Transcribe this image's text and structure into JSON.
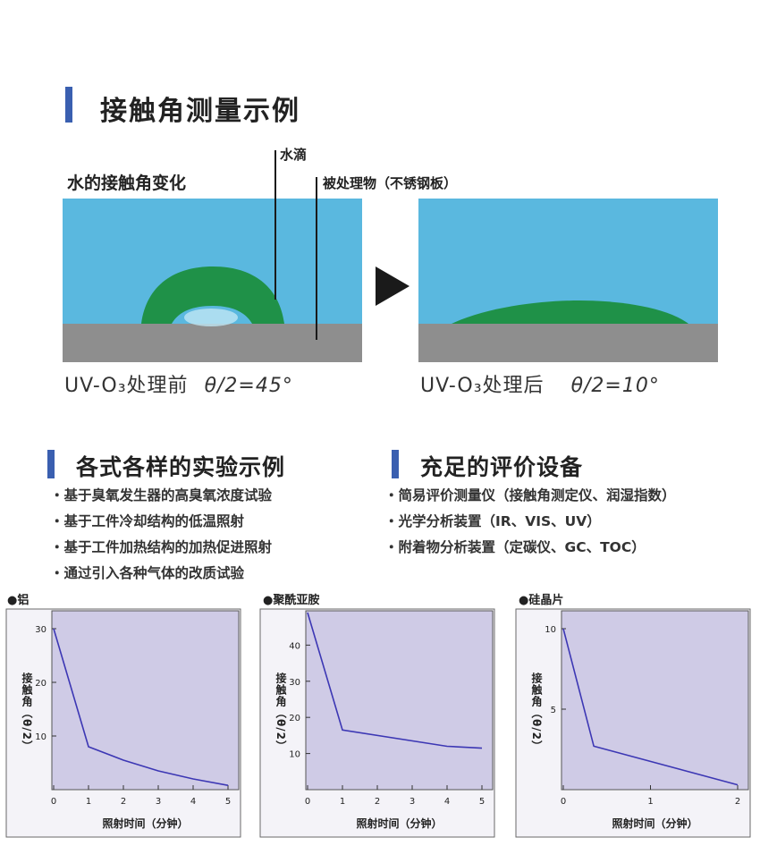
{
  "heading": "接触角测量示例",
  "diagram": {
    "subtitle": "水的接触角变化",
    "label_droplet": "水滴",
    "label_substrate": "被处理物（不锈钢板）",
    "before_caption_prefix": "UV-O₃处理前",
    "before_caption_angle": "θ/2=45°",
    "after_caption_prefix": "UV-O₃处理后",
    "after_caption_angle": "θ/2=10°",
    "colors": {
      "water": "#5ab8df",
      "droplet": "#1f9148",
      "substrate": "#8e8e8e",
      "arrow": "#1a1a1a"
    }
  },
  "section_examples": {
    "title": "各式各样的实验示例",
    "items": [
      "・基于臭氧发生器的高臭氧浓度试验",
      "・基于工件冷却结构的低温照射",
      "・基于工件加热结构的加热促进照射",
      "・通过引入各种气体的改质试验"
    ]
  },
  "section_equipment": {
    "title": "充足的评价设备",
    "items": [
      "・简易评价测量仪（接触角测定仪、润湿指数）",
      "・光学分析装置（IR、VIS、UV）",
      "・附着物分析装置（定碳仪、GC、TOC）"
    ]
  },
  "chart_data": [
    {
      "type": "line",
      "title": "●铝",
      "xlabel": "照射时间（分钟）",
      "ylabel": "接触角（θ/2）",
      "x": [
        0,
        1,
        2,
        3,
        4,
        5
      ],
      "y": [
        30,
        8,
        5.5,
        3.5,
        2,
        0.8
      ],
      "xlim": [
        0,
        5
      ],
      "ylim": [
        0,
        33
      ],
      "xticks": [
        0,
        1,
        2,
        3,
        4,
        5
      ],
      "yticks": [
        10,
        20,
        30
      ],
      "grid": false,
      "colors": {
        "plot_bg": "#cfcbe6",
        "line": "#3c37b4"
      }
    },
    {
      "type": "line",
      "title": "●聚酰亚胺",
      "xlabel": "照射时间（分钟）",
      "ylabel": "接触角（θ/2）",
      "x": [
        0,
        1,
        4,
        5
      ],
      "y": [
        49,
        16.5,
        12,
        11.5
      ],
      "xlim": [
        0,
        5
      ],
      "ylim": [
        0,
        49
      ],
      "xticks": [
        0,
        1,
        2,
        3,
        4,
        5
      ],
      "yticks": [
        10,
        20,
        30,
        40
      ],
      "grid": false,
      "colors": {
        "plot_bg": "#cfcbe6",
        "line": "#3c37b4"
      }
    },
    {
      "type": "line",
      "title": "●硅晶片",
      "xlabel": "照射时间（分钟）",
      "ylabel": "接触角（θ/2）",
      "x": [
        0,
        0.35,
        2
      ],
      "y": [
        10,
        2.7,
        0.3
      ],
      "xlim": [
        0,
        2
      ],
      "ylim": [
        0,
        11
      ],
      "xticks": [
        0,
        1,
        2
      ],
      "yticks": [
        5,
        10
      ],
      "grid": false,
      "colors": {
        "plot_bg": "#cfcbe6",
        "line": "#3c37b4"
      }
    }
  ]
}
